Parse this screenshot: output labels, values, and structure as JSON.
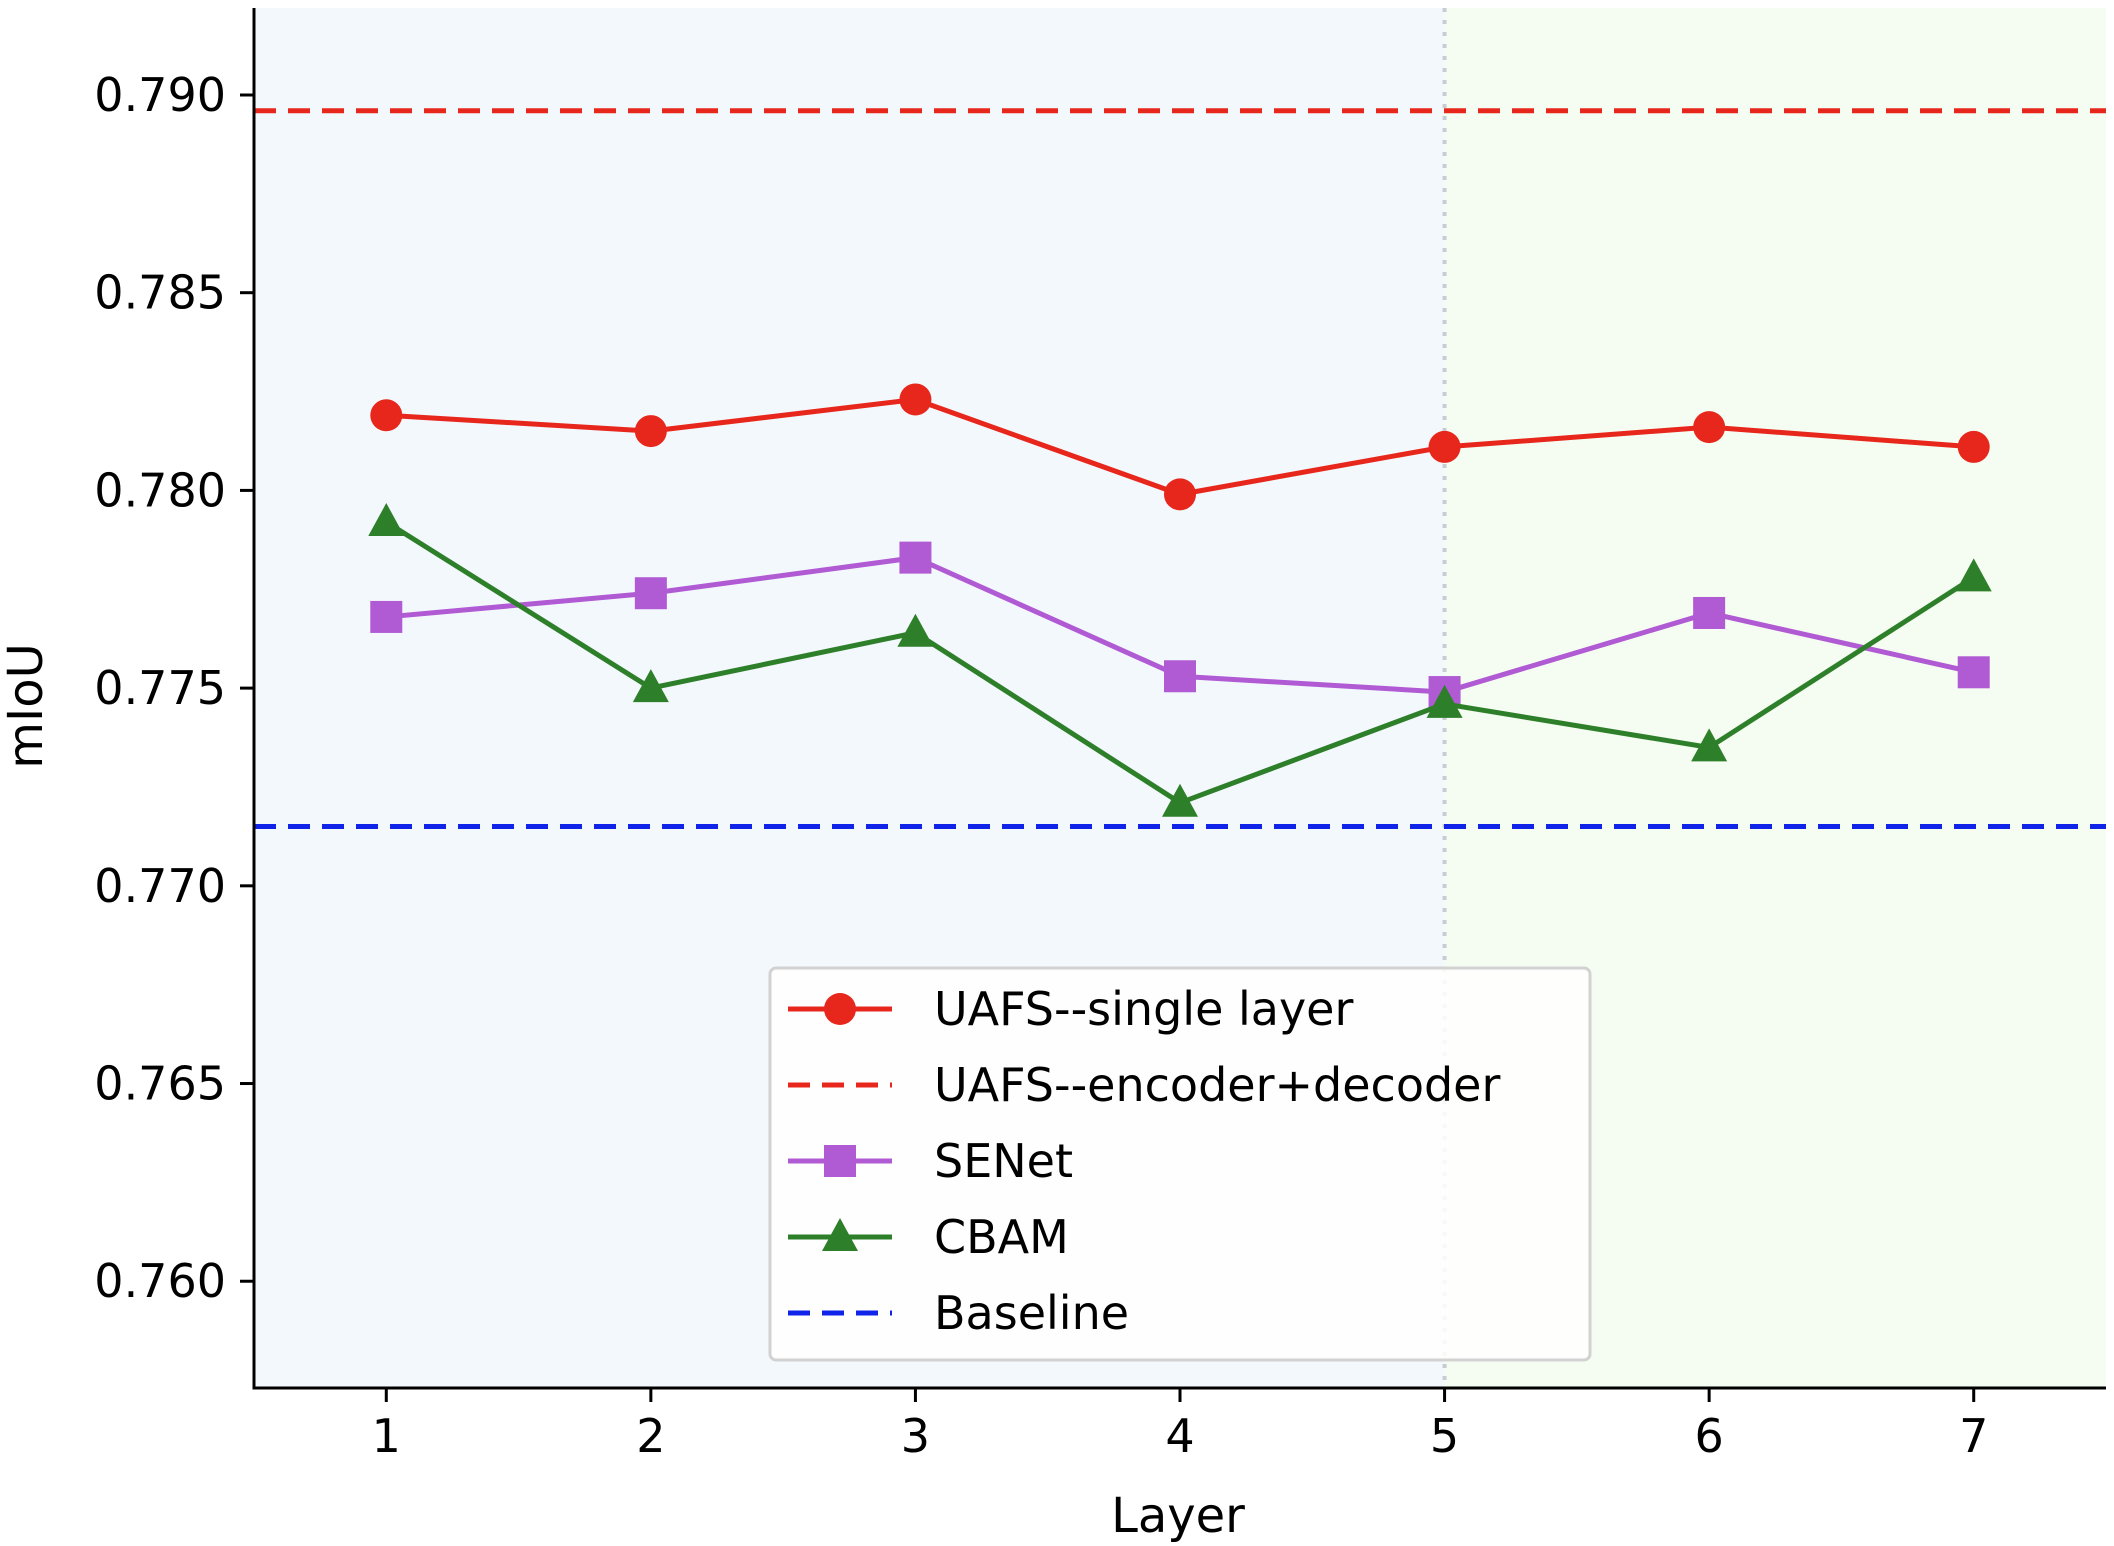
{
  "chart_data": {
    "type": "line",
    "xlabel": "Layer",
    "ylabel": "mIoU",
    "x": [
      1,
      2,
      3,
      4,
      5,
      6,
      7
    ],
    "xlim": [
      0.5,
      7.5
    ],
    "ylim": [
      0.7573,
      0.7922
    ],
    "yticks": [
      0.76,
      0.765,
      0.77,
      0.775,
      0.78,
      0.785,
      0.79
    ],
    "ytick_labels": [
      "0.760",
      "0.765",
      "0.770",
      "0.775",
      "0.780",
      "0.785",
      "0.790"
    ],
    "xtick_labels": [
      "1",
      "2",
      "3",
      "4",
      "5",
      "6",
      "7"
    ],
    "grid": false,
    "legend_position": "lower-center",
    "background_regions": [
      {
        "from": 0.5,
        "to": 5,
        "color": "#f3f8fd"
      },
      {
        "from": 5,
        "to": 7.5,
        "color": "#f5fcf1"
      }
    ],
    "vertical_divider": {
      "x": 5,
      "color": "#c8ccd2",
      "style": "dotted"
    },
    "series": [
      {
        "name": "UAFS--single layer",
        "kind": "line",
        "marker": "circle",
        "color": "#e8271c",
        "values": [
          0.7819,
          0.7815,
          0.7823,
          0.7799,
          0.7811,
          0.7816,
          0.7811
        ]
      },
      {
        "name": "UAFS--encoder+decoder",
        "kind": "hline",
        "style": "dashed",
        "color": "#e8271c",
        "value": 0.7896
      },
      {
        "name": "SENet",
        "kind": "line",
        "marker": "square",
        "color": "#b05ad3",
        "values": [
          0.7768,
          0.7774,
          0.7783,
          0.7753,
          0.7749,
          0.7769,
          0.7754
        ]
      },
      {
        "name": "CBAM",
        "kind": "line",
        "marker": "triangle",
        "color": "#2e7f2a",
        "values": [
          0.7792,
          0.775,
          0.7764,
          0.7721,
          0.7746,
          0.7735,
          0.7778
        ]
      },
      {
        "name": "Baseline",
        "kind": "hline",
        "style": "dashed",
        "color": "#1023e8",
        "value": 0.7715
      }
    ]
  }
}
